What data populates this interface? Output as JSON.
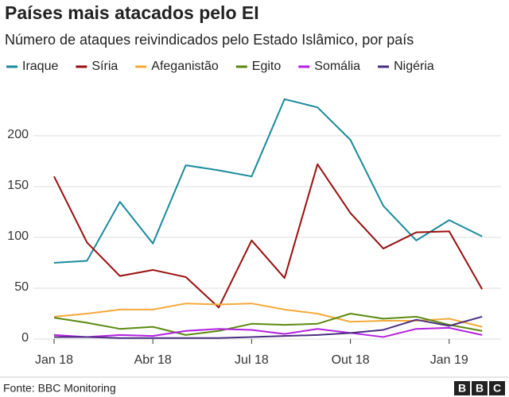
{
  "chart_data": {
    "type": "line",
    "title": "Países mais atacados pelo EI",
    "subtitle": "Número de ataques reivindicados pelo Estado Islâmico, por país",
    "categories": [
      "Jan 18",
      null,
      null,
      "Abr 18",
      null,
      null,
      "Jul 18",
      null,
      null,
      "Out 18",
      null,
      null,
      "Jan 19",
      null
    ],
    "series": [
      {
        "name": "Iraque",
        "color": "#1a8a9c",
        "values": [
          75,
          77,
          135,
          94,
          171,
          166,
          160,
          236,
          228,
          196,
          131,
          97,
          117,
          101
        ]
      },
      {
        "name": "Síria",
        "color": "#990f0f",
        "values": [
          160,
          95,
          62,
          68,
          61,
          31,
          97,
          60,
          172,
          124,
          89,
          105,
          106,
          49
        ]
      },
      {
        "name": "Afeganistão",
        "color": "#f5a93a",
        "values": [
          22,
          25,
          29,
          29,
          35,
          34,
          35,
          29,
          25,
          17,
          18,
          18,
          20,
          12
        ]
      },
      {
        "name": "Egito",
        "color": "#5b8a10",
        "values": [
          21,
          16,
          10,
          12,
          4,
          8,
          15,
          14,
          15,
          25,
          20,
          22,
          14,
          8
        ]
      },
      {
        "name": "Somália",
        "color": "#b420e0",
        "values": [
          4,
          2,
          4,
          3,
          8,
          10,
          9,
          5,
          10,
          6,
          2,
          10,
          11,
          4
        ]
      },
      {
        "name": "Nigéria",
        "color": "#4a2d80",
        "values": [
          2,
          2,
          1,
          1,
          1,
          1,
          2,
          3,
          4,
          6,
          9,
          19,
          13,
          22
        ]
      }
    ],
    "ylim": [
      0,
      250
    ],
    "yticks": [
      0,
      50,
      100,
      150,
      200
    ],
    "grid": true,
    "source": "Fonte: BBC Monitoring",
    "logo": [
      "B",
      "B",
      "C"
    ]
  }
}
